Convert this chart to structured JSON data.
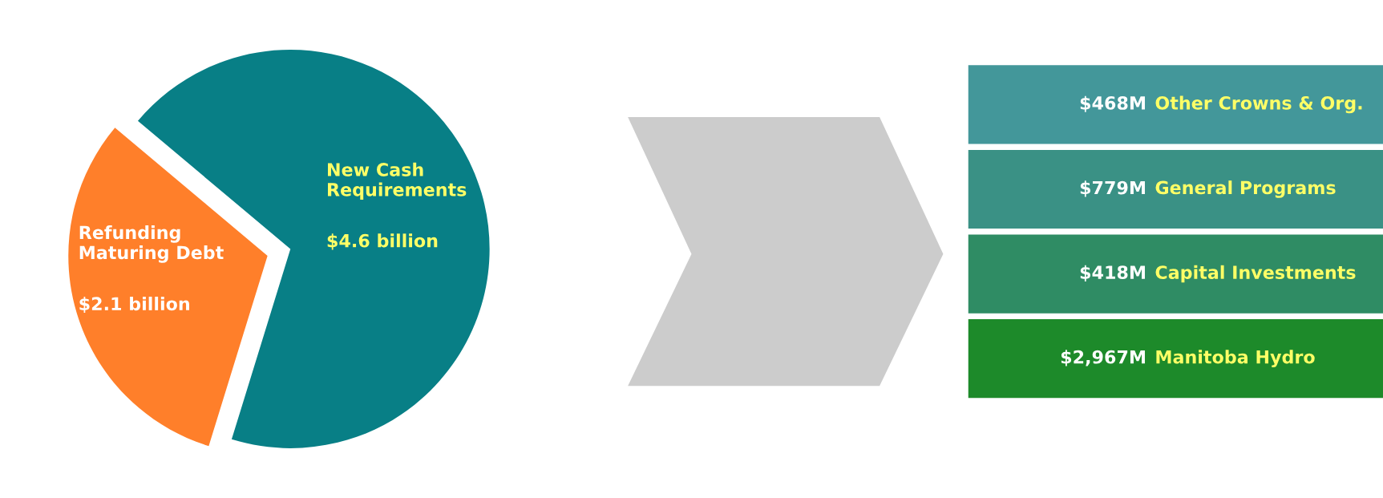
{
  "chart_data": [
    {
      "type": "pie",
      "categories": [
        "Refunding\nMaturing Debt",
        "New Cash\nRequirements"
      ],
      "values": [
        2.1,
        4.6
      ],
      "value_labels": [
        "$2.1 billion",
        "$4.6 billion"
      ],
      "colors": [
        "#ff7f2a",
        "#087f86"
      ]
    },
    {
      "type": "other",
      "categories": [
        "Other Crowns & Org.",
        "General Programs",
        "Capital Investments",
        "Manitoba Hydro"
      ],
      "value_labels": [
        "$468M",
        "$779M",
        "$418M",
        "$2,967M"
      ],
      "colors": [
        "#43979a",
        "#3a9185",
        "#2f8c64",
        "#1d8a2a"
      ]
    }
  ]
}
